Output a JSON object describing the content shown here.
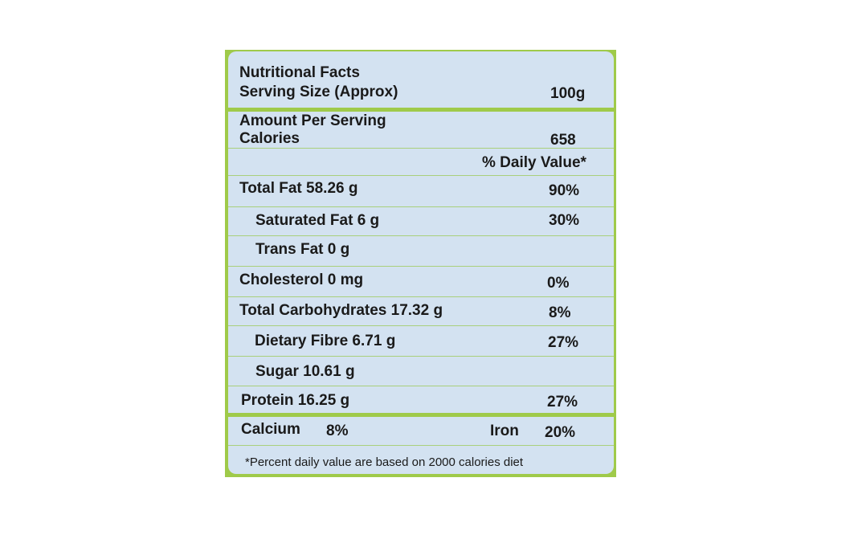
{
  "label": {
    "title": "Nutritional Facts",
    "serving_size_label": "Serving Size (Approx)",
    "serving_size_value": "100g",
    "amount_per_serving": "Amount Per Serving",
    "calories_label": "Calories",
    "calories_value": "658",
    "daily_value_header": "% Daily Value*",
    "rows": [
      {
        "label": "Total Fat  58.26 g",
        "dv": "90%"
      },
      {
        "label": "Saturated Fat  6 g",
        "dv": "30%"
      },
      {
        "label": "Trans Fat 0 g",
        "dv": ""
      },
      {
        "label": "Cholesterol 0 mg",
        "dv": "0%"
      },
      {
        "label": "Total Carbohydrates 17.32 g",
        "dv": "8%"
      },
      {
        "label": "Dietary Fibre 6.71 g",
        "dv": "27%"
      },
      {
        "label": "Sugar 10.61 g",
        "dv": ""
      },
      {
        "label": "Protein 16.25 g",
        "dv": "27%"
      }
    ],
    "minerals": {
      "calcium_label": "Calcium",
      "calcium_value": "8%",
      "iron_label": "Iron",
      "iron_value": "20%"
    },
    "footnote": "*Percent daily value are based on 2000 calories diet"
  },
  "colors": {
    "panel": "#d3e2f1",
    "border_green": "#9fca4a"
  }
}
